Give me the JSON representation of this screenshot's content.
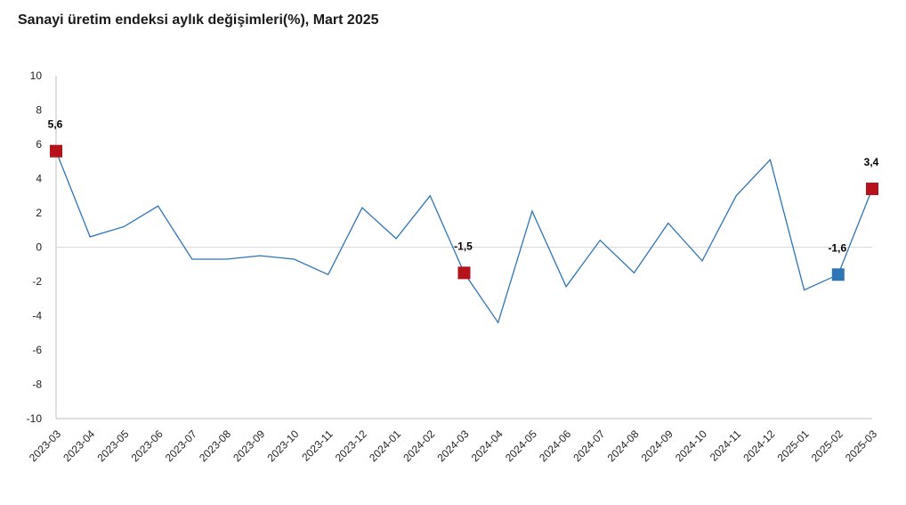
{
  "chart_data": {
    "type": "line",
    "title": "Sanayi üretim endeksi aylık değişimleri(%), Mart 2025",
    "xlabel": "",
    "ylabel": "",
    "ylim": [
      -10,
      10
    ],
    "yticks": [
      10,
      8,
      6,
      4,
      2,
      0,
      -2,
      -4,
      -6,
      -8,
      -10
    ],
    "grid": false,
    "categories": [
      "2023-03",
      "2023-04",
      "2023-05",
      "2023-06",
      "2023-07",
      "2023-08",
      "2023-09",
      "2023-10",
      "2023-11",
      "2023-12",
      "2024-01",
      "2024-02",
      "2024-03",
      "2024-04",
      "2024-05",
      "2024-06",
      "2024-07",
      "2024-08",
      "2024-09",
      "2024-10",
      "2024-11",
      "2024-12",
      "2025-01",
      "2025-02",
      "2025-03"
    ],
    "series": [
      {
        "name": "",
        "color": "#2e75b6",
        "values": [
          5.6,
          0.6,
          1.2,
          2.4,
          -0.7,
          -0.7,
          -0.5,
          -0.7,
          -1.6,
          2.3,
          0.5,
          3.0,
          -1.5,
          -4.4,
          2.1,
          -2.3,
          0.4,
          -1.5,
          1.4,
          -0.8,
          3.0,
          5.1,
          -2.5,
          -1.6,
          3.4
        ]
      }
    ],
    "highlights": [
      {
        "index": 0,
        "label": "5,6",
        "color": "#b5121b"
      },
      {
        "index": 12,
        "label": "-1,5",
        "color": "#b5121b"
      },
      {
        "index": 23,
        "label": "-1,6",
        "color": "#2e75b6"
      },
      {
        "index": 24,
        "label": "3,4",
        "color": "#b5121b"
      }
    ]
  }
}
